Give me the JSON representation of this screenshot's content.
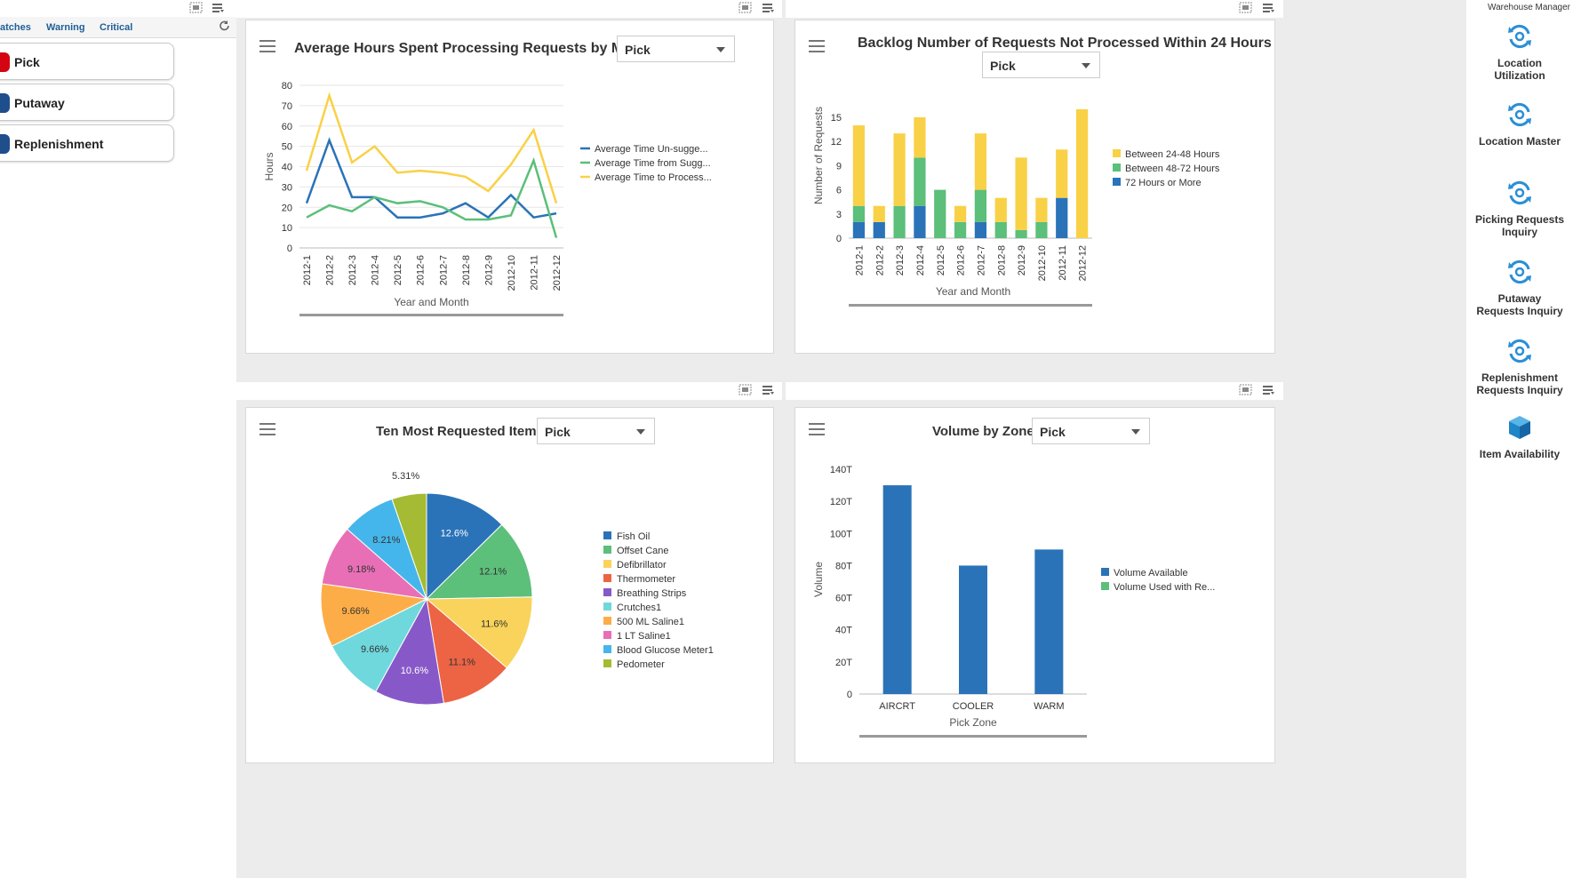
{
  "watchlist": {
    "tabs": [
      "atches",
      "Warning",
      "Critical"
    ],
    "items": [
      {
        "label": "Pick",
        "color": "#d40511"
      },
      {
        "label": "Putaway",
        "color": "#1f4e8c"
      },
      {
        "label": "Replenishment",
        "color": "#1f4e8c"
      }
    ]
  },
  "charts": {
    "avg_hours": {
      "title": "Average Hours Spent Processing Requests by Month",
      "select": "Pick",
      "chart_data": {
        "type": "line",
        "title": "Average Hours Spent Processing Requests by Month",
        "xlabel": "Year and Month",
        "ylabel": "Hours",
        "ylim": [
          0,
          80
        ],
        "yticks": [
          0,
          10,
          20,
          30,
          40,
          50,
          60,
          70,
          80
        ],
        "categories": [
          "2012-1",
          "2012-2",
          "2012-3",
          "2012-4",
          "2012-5",
          "2012-6",
          "2012-7",
          "2012-8",
          "2012-9",
          "2012-10",
          "2012-11",
          "2012-12"
        ],
        "series": [
          {
            "name": "Average Time Un-sugge...",
            "color": "#2a73b8",
            "values": [
              22,
              53,
              25,
              25,
              15,
              15,
              17,
              22,
              15,
              26,
              15,
              17
            ]
          },
          {
            "name": "Average Time from Sugg...",
            "color": "#5cbf7a",
            "values": [
              15,
              21,
              18,
              25,
              22,
              23,
              20,
              14,
              14,
              16,
              43,
              5
            ]
          },
          {
            "name": "Average Time to Process...",
            "color": "#f9d146",
            "values": [
              38,
              75,
              42,
              50,
              37,
              38,
              37,
              35,
              28,
              41,
              58,
              22
            ]
          }
        ]
      }
    },
    "backlog": {
      "title": "Backlog Number of Requests Not Processed Within 24 Hours",
      "select": "Pick",
      "chart_data": {
        "type": "bar",
        "stacked": true,
        "title": "Backlog Number of Requests Not Processed Within 24 Hours",
        "xlabel": "Year and Month",
        "ylabel": "Number of Requests",
        "ylim": [
          0,
          15
        ],
        "yticks": [
          0,
          3,
          6,
          9,
          12,
          15
        ],
        "categories": [
          "2012-1",
          "2012-2",
          "2012-3",
          "2012-4",
          "2012-5",
          "2012-6",
          "2012-7",
          "2012-8",
          "2012-9",
          "2012-10",
          "2012-11",
          "2012-12"
        ],
        "series": [
          {
            "name": "72 Hours or More",
            "color": "#2a73b8",
            "values": [
              2,
              2,
              0,
              4,
              0,
              0,
              2,
              0,
              0,
              0,
              5,
              0
            ]
          },
          {
            "name": "Between 48-72 Hours",
            "color": "#5cbf7a",
            "values": [
              2,
              0,
              4,
              6,
              6,
              2,
              4,
              2,
              1,
              2,
              0,
              0
            ]
          },
          {
            "name": "Between 24-48 Hours",
            "color": "#f9d146",
            "values": [
              10,
              2,
              9,
              5,
              0,
              2,
              7,
              3,
              9,
              3,
              6,
              16
            ]
          }
        ],
        "legend": [
          "Between 24-48 Hours",
          "Between 48-72 Hours",
          "72 Hours or More"
        ]
      }
    },
    "top_items": {
      "title": "Ten Most Requested Items",
      "select": "Pick",
      "chart_data": {
        "type": "pie",
        "title": "Ten Most Requested Items",
        "slices": [
          {
            "label": "Fish Oil",
            "value": 12.6,
            "text": "12.6%",
            "color": "#2a73b8"
          },
          {
            "label": "Offset Cane",
            "value": 12.1,
            "text": "12.1%",
            "color": "#5cbf7a"
          },
          {
            "label": "Defibrillator",
            "value": 11.6,
            "text": "11.6%",
            "color": "#f9d35b"
          },
          {
            "label": "Thermometer",
            "value": 11.1,
            "text": "11.1%",
            "color": "#ec6444"
          },
          {
            "label": "Breathing Strips",
            "value": 10.6,
            "text": "10.6%",
            "color": "#8759c8"
          },
          {
            "label": "Crutches1",
            "value": 9.66,
            "text": "9.66%",
            "color": "#6fd8dc"
          },
          {
            "label": "500 ML Saline1",
            "value": 9.66,
            "text": "9.66%",
            "color": "#fdad48"
          },
          {
            "label": "1 LT Saline1",
            "value": 9.18,
            "text": "9.18%",
            "color": "#e86fb6"
          },
          {
            "label": "Blood Glucose Meter1",
            "value": 8.21,
            "text": "8.21%",
            "color": "#45b6eb"
          },
          {
            "label": "Pedometer",
            "value": 5.31,
            "text": "5.31%",
            "color": "#a4bb33"
          }
        ]
      }
    },
    "volume": {
      "title": "Volume by Zone",
      "select": "Pick",
      "chart_data": {
        "type": "bar",
        "title": "Volume by Zone",
        "xlabel": "Pick Zone",
        "ylabel": "Volume",
        "ylim": [
          0,
          140
        ],
        "yticks": [
          "0",
          "20T",
          "40T",
          "60T",
          "80T",
          "100T",
          "120T",
          "140T"
        ],
        "categories": [
          "AIRCRT",
          "COOLER",
          "WARM"
        ],
        "series": [
          {
            "name": "Volume Available",
            "color": "#2a73b8",
            "values": [
              130,
              80,
              90
            ]
          },
          {
            "name": "Volume Used with Re...",
            "color": "#5cbf7a",
            "values": [
              0,
              0,
              0
            ]
          }
        ]
      }
    }
  },
  "sidebar": {
    "title": "Warehouse Manager",
    "items": [
      {
        "label1": "Location",
        "label2": "Utilization",
        "icon": "refresh-cycle-icon"
      },
      {
        "label1": "Location Master",
        "label2": "",
        "icon": "refresh-cycle-icon"
      },
      {
        "label1": "Picking Requests",
        "label2": "Inquiry",
        "icon": "refresh-cycle-icon"
      },
      {
        "label1": "Putaway",
        "label2": "Requests Inquiry",
        "icon": "refresh-cycle-icon"
      },
      {
        "label1": "Replenishment",
        "label2": "Requests Inquiry",
        "icon": "refresh-cycle-icon"
      },
      {
        "label1": "Item Availability",
        "label2": "",
        "icon": "cube-icon"
      }
    ]
  }
}
